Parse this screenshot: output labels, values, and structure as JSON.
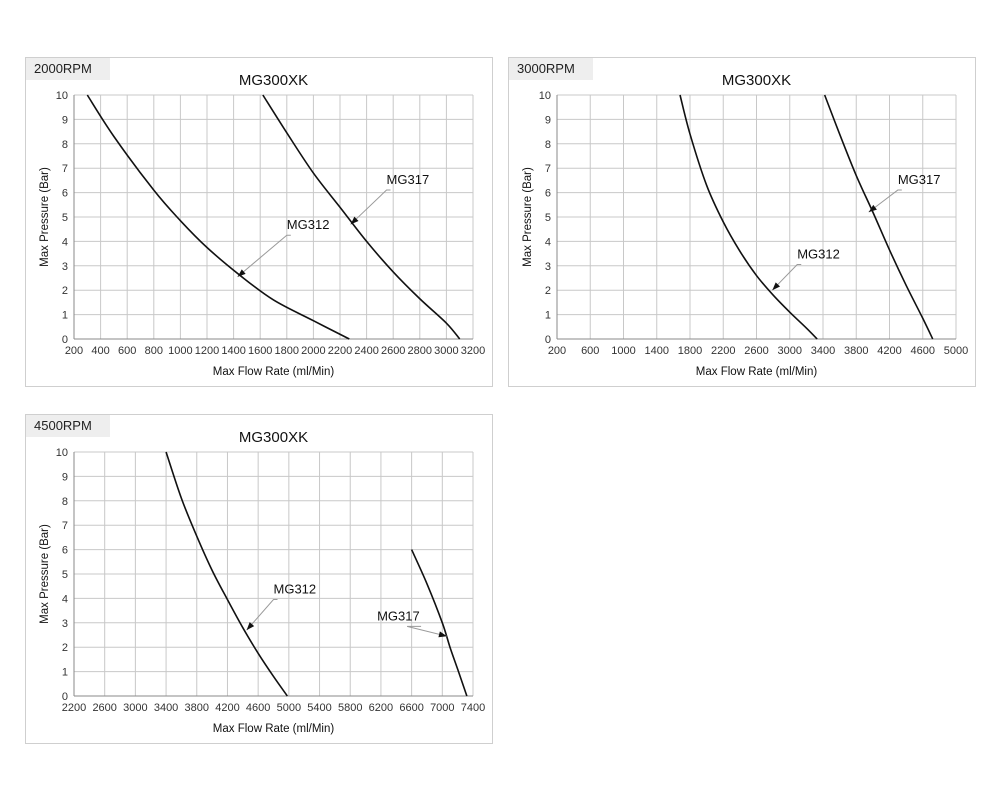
{
  "chart_data": [
    {
      "type": "line",
      "panel_label": "2000RPM",
      "title": "MG300XK",
      "xlabel": "Max Flow Rate (ml/Min)",
      "ylabel": "Max Pressure (Bar)",
      "xlim": [
        200,
        3200
      ],
      "ylim": [
        0,
        10
      ],
      "xticks": [
        200,
        400,
        600,
        800,
        1000,
        1200,
        1400,
        1600,
        1800,
        2000,
        2200,
        2400,
        2600,
        2800,
        3000,
        3200
      ],
      "yticks": [
        0,
        1,
        2,
        3,
        4,
        5,
        6,
        7,
        8,
        9,
        10
      ],
      "grid": true,
      "series": [
        {
          "name": "MG312",
          "points": [
            [
              300,
              10
            ],
            [
              500,
              8.3
            ],
            [
              800,
              6.1
            ],
            [
              1000,
              4.85
            ],
            [
              1200,
              3.75
            ],
            [
              1450,
              2.6
            ],
            [
              1700,
              1.6
            ],
            [
              2000,
              0.75
            ],
            [
              2270,
              0
            ]
          ],
          "callout": {
            "anchor": [
              1430,
              2.55
            ],
            "label_at": [
              1800,
              4.5
            ]
          }
        },
        {
          "name": "MG317",
          "points": [
            [
              1620,
              10
            ],
            [
              1800,
              8.45
            ],
            [
              2000,
              6.8
            ],
            [
              2200,
              5.4
            ],
            [
              2400,
              4.0
            ],
            [
              2600,
              2.75
            ],
            [
              2800,
              1.65
            ],
            [
              3000,
              0.65
            ],
            [
              3100,
              0
            ]
          ],
          "callout": {
            "anchor": [
              2280,
              4.7
            ],
            "label_at": [
              2550,
              6.35
            ]
          }
        }
      ]
    },
    {
      "type": "line",
      "panel_label": "3000RPM",
      "title": "MG300XK",
      "xlabel": "Max Flow Rate (ml/Min)",
      "ylabel": "Max Pressure (Bar)",
      "xlim": [
        200,
        5000
      ],
      "ylim": [
        0,
        10
      ],
      "xticks": [
        200,
        600,
        1000,
        1400,
        1800,
        2200,
        2600,
        3000,
        3400,
        3800,
        4200,
        4600,
        5000
      ],
      "yticks": [
        0,
        1,
        2,
        3,
        4,
        5,
        6,
        7,
        8,
        9,
        10
      ],
      "grid": true,
      "series": [
        {
          "name": "MG312",
          "points": [
            [
              1680,
              10
            ],
            [
              1800,
              8.4
            ],
            [
              2000,
              6.3
            ],
            [
              2200,
              4.8
            ],
            [
              2400,
              3.6
            ],
            [
              2600,
              2.6
            ],
            [
              2800,
              1.8
            ],
            [
              3000,
              1.1
            ],
            [
              3200,
              0.45
            ],
            [
              3330,
              0
            ]
          ],
          "callout": {
            "anchor": [
              2790,
              2.0
            ],
            "label_at": [
              3090,
              3.3
            ]
          }
        },
        {
          "name": "MG317",
          "points": [
            [
              3420,
              10
            ],
            [
              3600,
              8.4
            ],
            [
              3800,
              6.7
            ],
            [
              4000,
              5.2
            ],
            [
              4200,
              3.65
            ],
            [
              4400,
              2.2
            ],
            [
              4600,
              0.85
            ],
            [
              4720,
              0
            ]
          ],
          "callout": {
            "anchor": [
              3950,
              5.2
            ],
            "label_at": [
              4300,
              6.35
            ]
          }
        }
      ]
    },
    {
      "type": "line",
      "panel_label": "4500RPM",
      "title": "MG300XK",
      "xlabel": "Max Flow Rate (ml/Min)",
      "ylabel": "Max Pressure (Bar)",
      "xlim": [
        2200,
        7400
      ],
      "ylim": [
        0,
        10
      ],
      "xticks": [
        2200,
        2600,
        3000,
        3400,
        3800,
        4200,
        4600,
        5000,
        5400,
        5800,
        6200,
        6600,
        7000,
        7400
      ],
      "yticks": [
        0,
        1,
        2,
        3,
        4,
        5,
        6,
        7,
        8,
        9,
        10
      ],
      "grid": true,
      "series": [
        {
          "name": "MG312",
          "points": [
            [
              3400,
              10
            ],
            [
              3600,
              8.1
            ],
            [
              3800,
              6.55
            ],
            [
              4000,
              5.15
            ],
            [
              4200,
              3.95
            ],
            [
              4400,
              2.8
            ],
            [
              4600,
              1.75
            ],
            [
              4800,
              0.8
            ],
            [
              4980,
              0
            ]
          ],
          "callout": {
            "anchor": [
              4450,
              2.7
            ],
            "label_at": [
              4800,
              4.2
            ]
          }
        },
        {
          "name": "MG317",
          "points": [
            [
              6600,
              6.0
            ],
            [
              6800,
              4.6
            ],
            [
              7000,
              3.0
            ],
            [
              7100,
              2.0
            ],
            [
              7200,
              1.1
            ],
            [
              7320,
              0
            ]
          ],
          "callout": {
            "anchor": [
              7060,
              2.45
            ],
            "label_at": [
              6150,
              3.1
            ]
          }
        }
      ]
    }
  ]
}
